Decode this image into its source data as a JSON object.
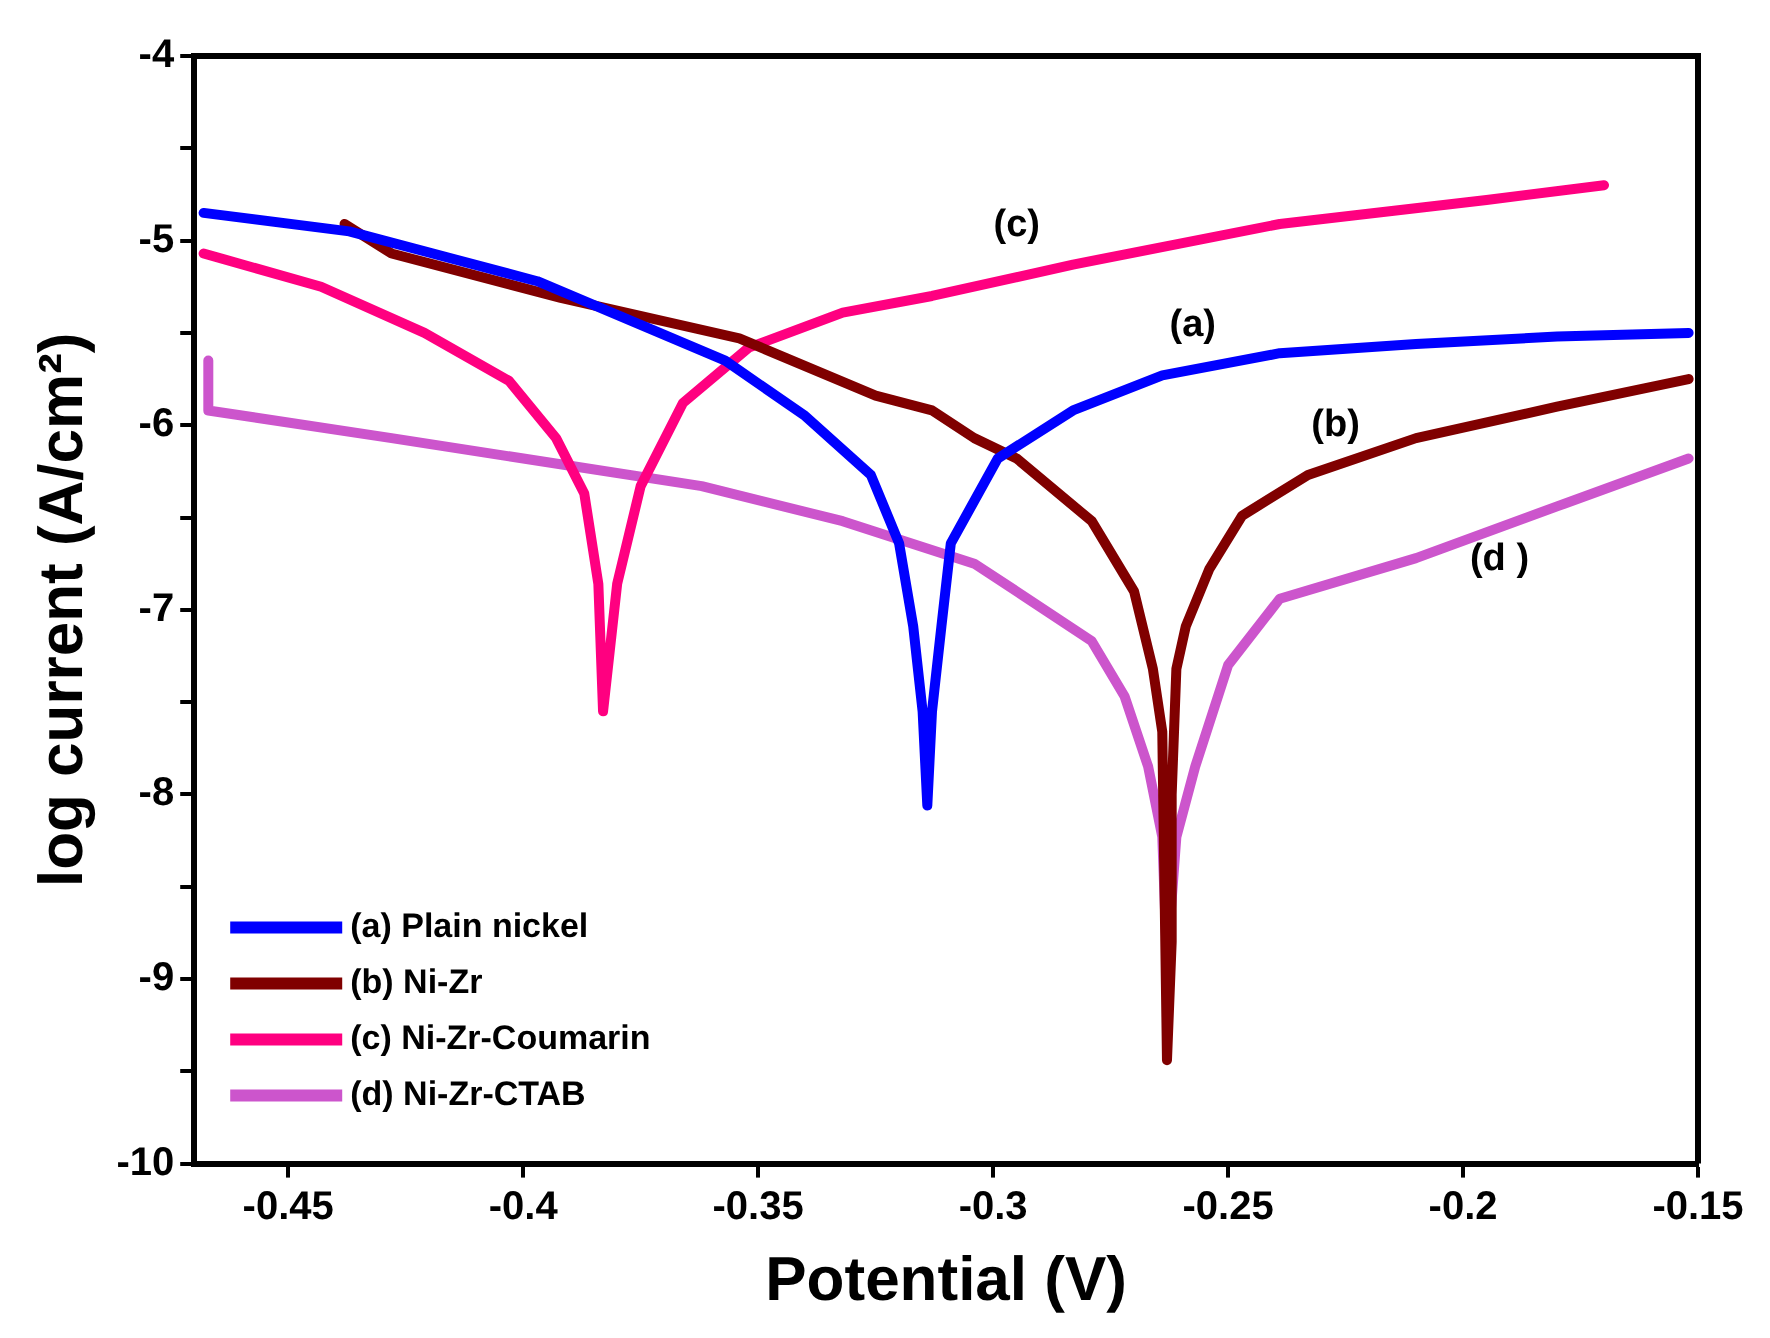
{
  "chart_data": {
    "type": "line",
    "xlabel": "Potential (V)",
    "ylabel": "log current (A/cm²)",
    "xlim": [
      -0.47,
      -0.15
    ],
    "xticks": [
      -0.45,
      -0.4,
      -0.35,
      -0.3,
      -0.25,
      -0.2,
      -0.15
    ],
    "ylim": [
      -10,
      -4
    ],
    "yticks": [
      -10,
      {
        "value": -9.5,
        "label": null
      },
      -9,
      {
        "value": -8.5,
        "label": null
      },
      -8,
      {
        "value": -7.5,
        "label": null
      },
      -7,
      {
        "value": -6.5,
        "label": null
      },
      -6,
      {
        "value": -5.5,
        "label": null
      },
      -5,
      {
        "value": -4.5,
        "label": null
      },
      -4
    ],
    "grid": false,
    "legend": "bottom left",
    "marker": "none",
    "line_style": "solid",
    "annotations": [
      "(a)",
      "(b)",
      "(c)",
      "(d )"
    ],
    "series": [
      {
        "name": "(a) Plain nickel",
        "color": "#0000ff",
        "x": [
          -0.468,
          -0.437,
          -0.397,
          -0.357,
          -0.34,
          -0.326,
          -0.32,
          -0.317,
          -0.315,
          -0.314,
          -0.313,
          -0.311,
          -0.309,
          -0.299,
          -0.283,
          -0.264,
          -0.239,
          -0.21,
          -0.18,
          -0.152
        ],
        "values": [
          -4.85,
          -4.95,
          -5.22,
          -5.65,
          -5.95,
          -6.27,
          -6.64,
          -7.09,
          -7.55,
          -8.06,
          -7.55,
          -7.09,
          -6.64,
          -6.18,
          -5.92,
          -5.73,
          -5.61,
          -5.56,
          -5.52,
          -5.5
        ]
      },
      {
        "name": "(b) Ni-Zr",
        "color": "#800000",
        "x": [
          -0.438,
          -0.428,
          -0.392,
          -0.354,
          -0.325,
          -0.313,
          -0.304,
          -0.295,
          -0.279,
          -0.27,
          -0.266,
          -0.264,
          -0.263,
          -0.262,
          -0.262,
          -0.261,
          -0.259,
          -0.254,
          -0.247,
          -0.233,
          -0.21,
          -0.18,
          -0.152
        ],
        "values": [
          -4.91,
          -5.07,
          -5.31,
          -5.53,
          -5.84,
          -5.92,
          -6.07,
          -6.18,
          -6.52,
          -6.9,
          -7.32,
          -7.66,
          -9.44,
          -8.8,
          -8.0,
          -7.32,
          -7.09,
          -6.78,
          -6.49,
          -6.27,
          -6.07,
          -5.9,
          -5.75
        ]
      },
      {
        "name": "(c) Ni-Zr-Coumarin",
        "color": "#ff0080",
        "x": [
          -0.468,
          -0.443,
          -0.421,
          -0.403,
          -0.393,
          -0.387,
          -0.384,
          -0.383,
          -0.38,
          -0.375,
          -0.366,
          -0.352,
          -0.332,
          -0.313,
          -0.283,
          -0.239,
          -0.195,
          -0.17
        ],
        "values": [
          -5.07,
          -5.25,
          -5.5,
          -5.76,
          -6.07,
          -6.37,
          -6.86,
          -7.55,
          -6.86,
          -6.33,
          -5.88,
          -5.58,
          -5.39,
          -5.3,
          -5.13,
          -4.91,
          -4.78,
          -4.7
        ]
      },
      {
        "name": "(d) Ni-Zr-CTAB",
        "color": "#cc55cc",
        "x": [
          -0.467,
          -0.467,
          -0.428,
          -0.39,
          -0.362,
          -0.332,
          -0.304,
          -0.295,
          -0.279,
          -0.272,
          -0.267,
          -0.264,
          -0.263,
          -0.261,
          -0.257,
          -0.25,
          -0.239,
          -0.21,
          -0.18,
          -0.152
        ],
        "values": [
          -5.65,
          -5.92,
          -6.07,
          -6.22,
          -6.33,
          -6.52,
          -6.75,
          -6.9,
          -7.17,
          -7.47,
          -7.85,
          -8.23,
          -8.91,
          -8.23,
          -7.85,
          -7.3,
          -6.94,
          -6.72,
          -6.44,
          -6.18
        ]
      }
    ]
  }
}
